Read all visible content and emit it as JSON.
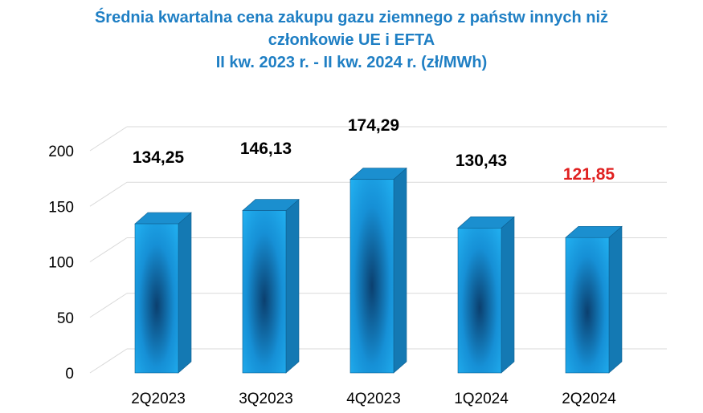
{
  "chart_data": {
    "type": "bar",
    "title_lines": [
      "Średnia kwartalna cena zakupu gazu ziemnego z państw innych niż",
      "członkowie UE i EFTA",
      "II kw. 2023 r. - II kw. 2024 r. (zł/MWh)"
    ],
    "categories": [
      "2Q2023",
      "3Q2023",
      "4Q2023",
      "1Q2024",
      "2Q2024"
    ],
    "values": [
      134.25,
      146.13,
      174.29,
      130.43,
      121.85
    ],
    "value_labels": [
      "134,25",
      "146,13",
      "174,29",
      "130,43",
      "121,85"
    ],
    "label_colors": [
      "#000000",
      "#000000",
      "#000000",
      "#000000",
      "#e02020"
    ],
    "yticks": [
      "0",
      "50",
      "100",
      "150",
      "200"
    ],
    "ylim": [
      0,
      200
    ],
    "bar_color": "#1aa6e8",
    "bar_top_color": "#1b8fcf",
    "bar_side_color": "#1479b3",
    "title_color": "#1f7fc4",
    "grid": true,
    "legend": "none",
    "style": "3d"
  }
}
